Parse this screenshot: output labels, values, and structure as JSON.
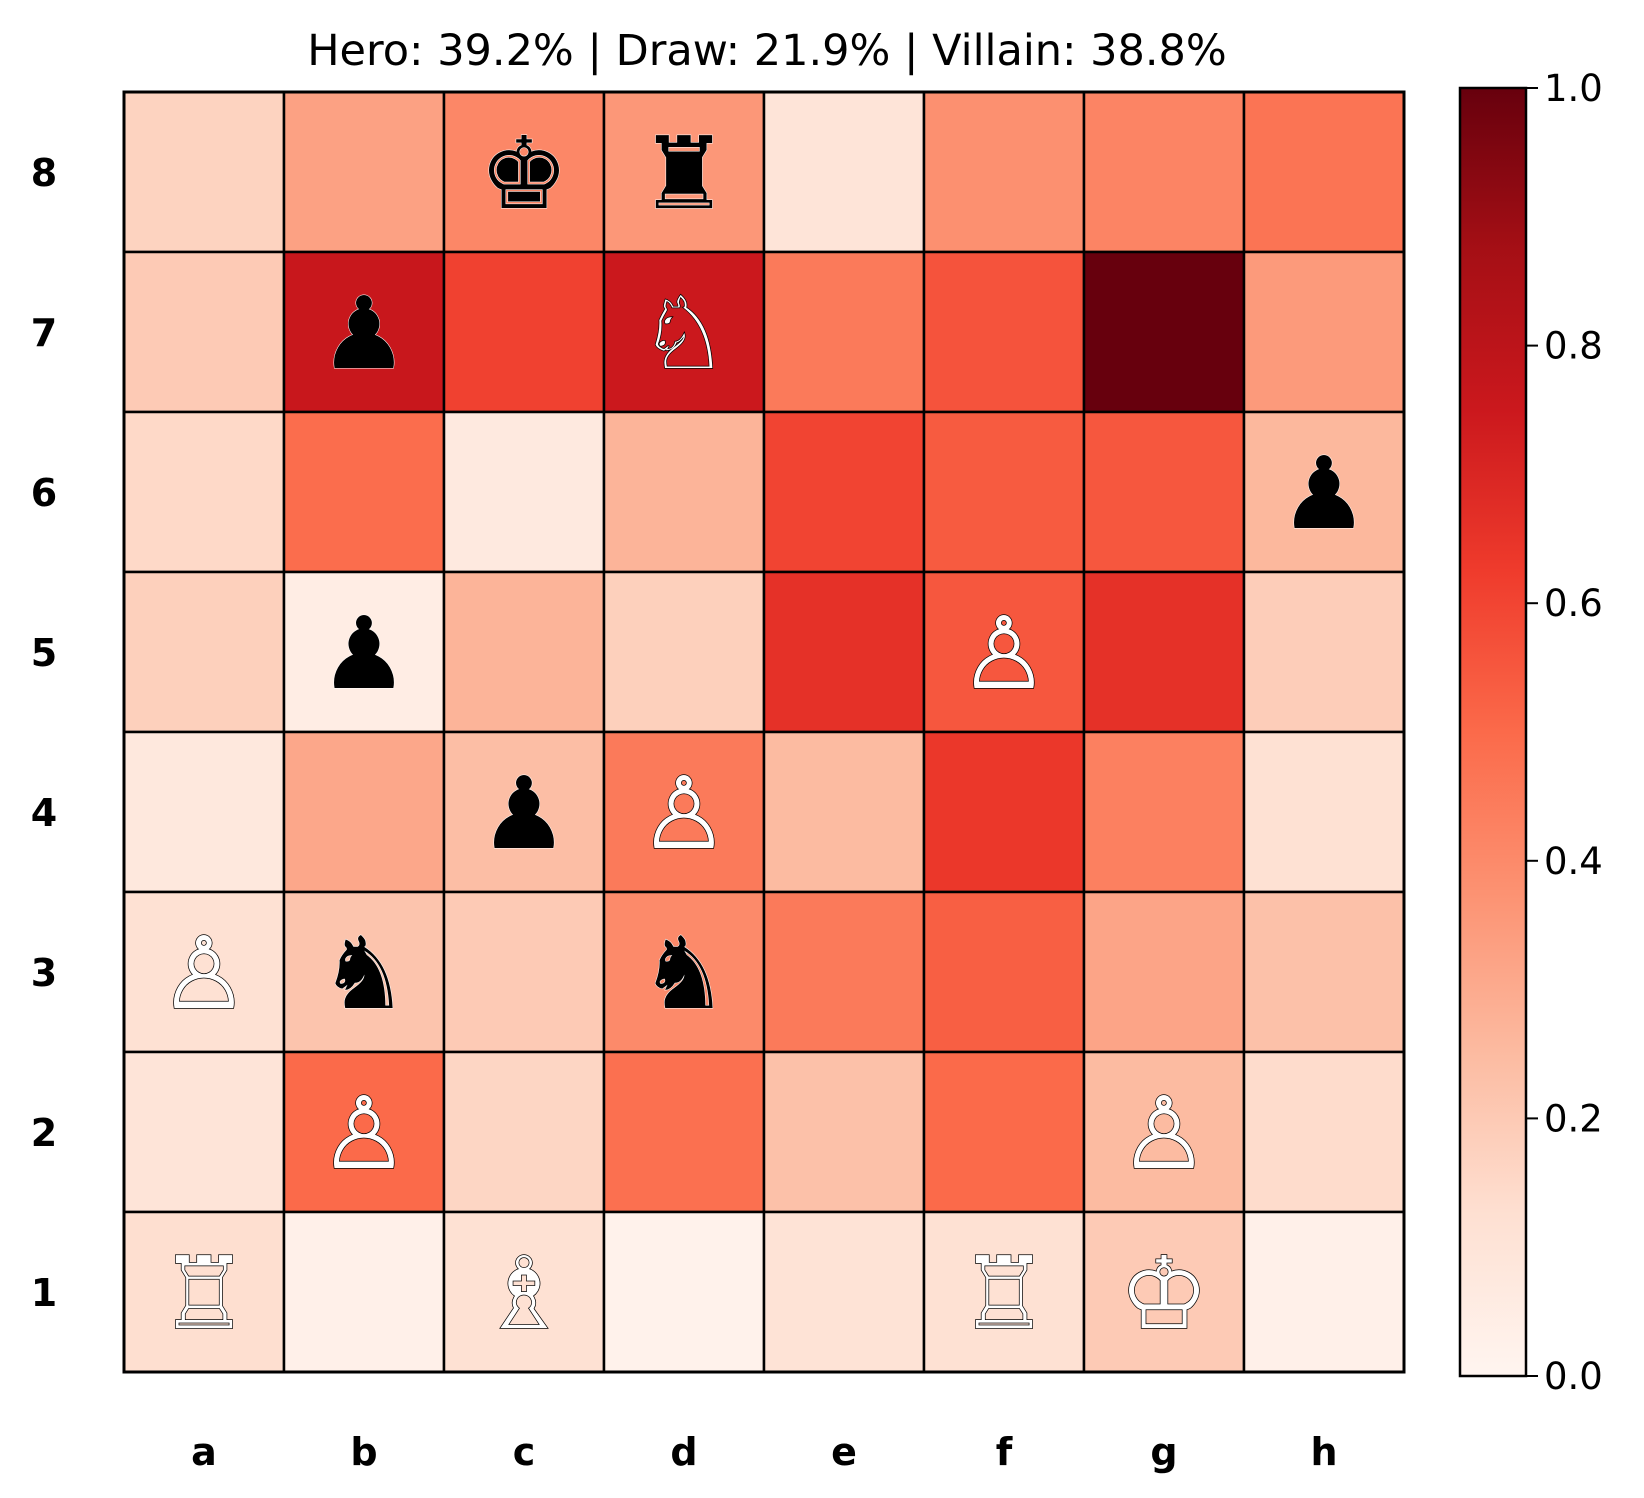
{
  "title": "Hero: 39.2% | Draw: 21.9% | Villain: 38.8%",
  "chart_data": {
    "type": "heatmap",
    "title": "Hero: 39.2% | Draw: 21.9% | Villain: 38.8%",
    "files": [
      "a",
      "b",
      "c",
      "d",
      "e",
      "f",
      "g",
      "h"
    ],
    "ranks": [
      "8",
      "7",
      "6",
      "5",
      "4",
      "3",
      "2",
      "1"
    ],
    "colormap": "Reds",
    "colormap_stops": [
      "#fff5f0",
      "#fee0d2",
      "#fcbba1",
      "#fc9272",
      "#fb6a4a",
      "#ef3b2c",
      "#cb181d",
      "#a50f15",
      "#67000d"
    ],
    "colorbar": {
      "range": [
        0.0,
        1.0
      ],
      "ticks": [
        0.0,
        0.2,
        0.4,
        0.6,
        0.8,
        1.0
      ],
      "tick_labels": [
        "0.0",
        "0.2",
        "0.4",
        "0.6",
        "0.8",
        "1.0"
      ]
    },
    "values": [
      [
        0.17,
        0.33,
        0.41,
        0.36,
        0.1,
        0.38,
        0.42,
        0.47
      ],
      [
        0.2,
        0.76,
        0.61,
        0.75,
        0.45,
        0.56,
        1.0,
        0.35
      ],
      [
        0.15,
        0.49,
        0.07,
        0.27,
        0.6,
        0.54,
        0.55,
        0.26
      ],
      [
        0.18,
        0.05,
        0.27,
        0.18,
        0.66,
        0.55,
        0.66,
        0.19
      ],
      [
        0.08,
        0.31,
        0.24,
        0.45,
        0.25,
        0.64,
        0.43,
        0.12
      ],
      [
        0.12,
        0.22,
        0.2,
        0.4,
        0.45,
        0.53,
        0.32,
        0.23
      ],
      [
        0.1,
        0.5,
        0.16,
        0.48,
        0.23,
        0.5,
        0.25,
        0.14
      ],
      [
        0.13,
        0.03,
        0.12,
        0.02,
        0.11,
        0.12,
        0.2,
        0.03
      ]
    ],
    "pieces": [
      {
        "square": "c8",
        "color": "black",
        "piece": "king",
        "symbol": "♚"
      },
      {
        "square": "d8",
        "color": "black",
        "piece": "rook",
        "symbol": "♜"
      },
      {
        "square": "b7",
        "color": "black",
        "piece": "pawn",
        "symbol": "♟"
      },
      {
        "square": "d7",
        "color": "white",
        "piece": "knight",
        "symbol": "♘"
      },
      {
        "square": "h6",
        "color": "black",
        "piece": "pawn",
        "symbol": "♟"
      },
      {
        "square": "b5",
        "color": "black",
        "piece": "pawn",
        "symbol": "♟"
      },
      {
        "square": "f5",
        "color": "white",
        "piece": "pawn",
        "symbol": "♙"
      },
      {
        "square": "c4",
        "color": "black",
        "piece": "pawn",
        "symbol": "♟"
      },
      {
        "square": "d4",
        "color": "white",
        "piece": "pawn",
        "symbol": "♙"
      },
      {
        "square": "a3",
        "color": "white",
        "piece": "pawn",
        "symbol": "♙"
      },
      {
        "square": "b3",
        "color": "black",
        "piece": "knight",
        "symbol": "♞"
      },
      {
        "square": "d3",
        "color": "black",
        "piece": "knight",
        "symbol": "♞"
      },
      {
        "square": "b2",
        "color": "white",
        "piece": "pawn",
        "symbol": "♙"
      },
      {
        "square": "g2",
        "color": "white",
        "piece": "pawn",
        "symbol": "♙"
      },
      {
        "square": "a1",
        "color": "white",
        "piece": "rook",
        "symbol": "♖"
      },
      {
        "square": "c1",
        "color": "white",
        "piece": "bishop",
        "symbol": "♗"
      },
      {
        "square": "f1",
        "color": "white",
        "piece": "rook",
        "symbol": "♖"
      },
      {
        "square": "g1",
        "color": "white",
        "piece": "king",
        "symbol": "♔"
      }
    ]
  }
}
